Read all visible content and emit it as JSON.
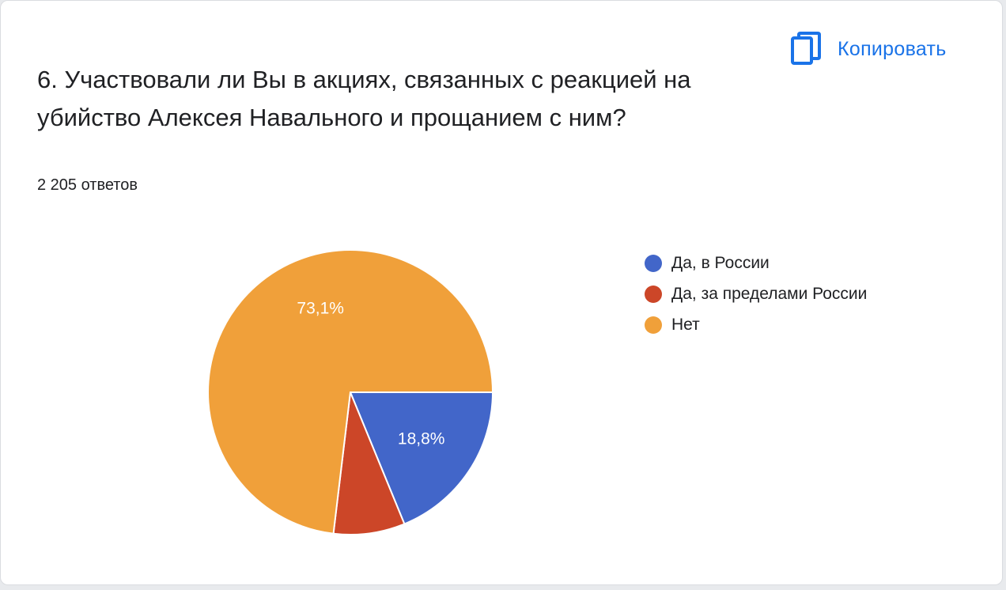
{
  "card": {
    "copy_label": "Копировать",
    "copy_icon": "copy-icon",
    "question": "6. Участвовали ли Вы в акциях, связанных с реакцией на убийство Алексея Навального и прощанием с ним?",
    "answers_count": "2 205 ответов"
  },
  "colors": {
    "accent": "#1a73e8"
  },
  "chart_data": {
    "type": "pie",
    "title": "",
    "total_responses": 2205,
    "legend_position": "right",
    "slices": [
      {
        "label": "Да, в России",
        "value": 18.8,
        "display": "18,8%",
        "color": "#4266c9"
      },
      {
        "label": "Да, за пределами России",
        "value": 8.1,
        "display": "",
        "color": "#cc4628"
      },
      {
        "label": "Нет",
        "value": 73.1,
        "display": "73,1%",
        "color": "#f0a03a"
      }
    ]
  }
}
